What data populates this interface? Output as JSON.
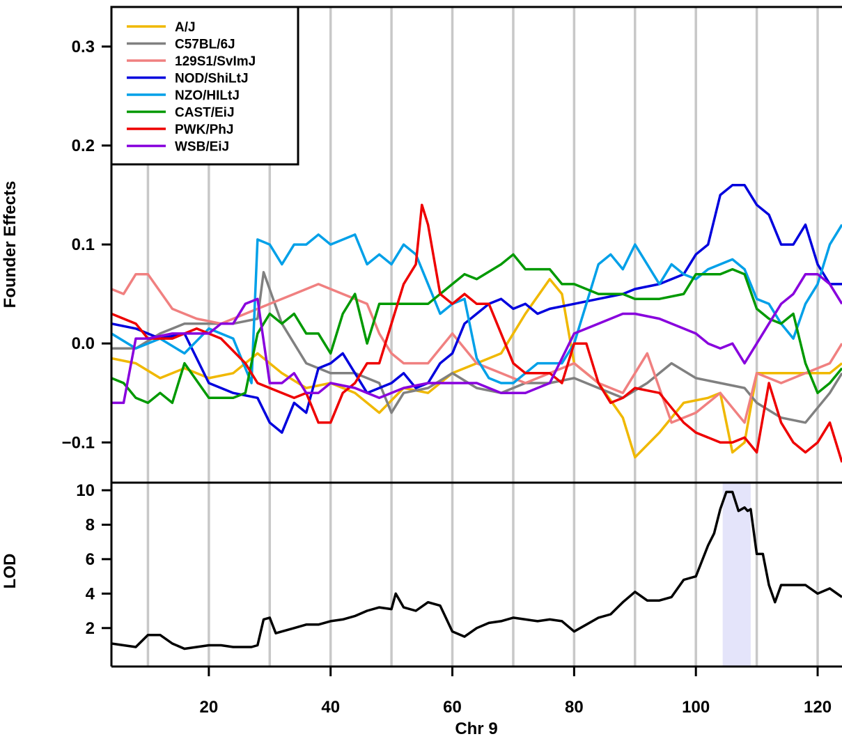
{
  "chart_data": [
    {
      "type": "line",
      "panel": "founder-effects",
      "ylabel": "Founder Effects",
      "ylim": [
        -0.135,
        0.34
      ],
      "xlim": [
        4,
        124
      ],
      "yticks": [
        -0.1,
        0.0,
        0.1,
        0.2,
        0.3
      ],
      "ytick_labels": [
        "−0.1",
        "0.0",
        "0.1",
        "0.2",
        "0.3"
      ],
      "grid": "vertical grey lines every 10 Mb",
      "legend": "top-left",
      "series": [
        {
          "name": "A/J",
          "color": "#F0B800",
          "x": [
            4,
            8,
            12,
            16,
            20,
            24,
            28,
            32,
            36,
            40,
            44,
            48,
            52,
            56,
            60,
            64,
            68,
            72,
            76,
            78,
            80,
            84,
            88,
            90,
            94,
            98,
            102,
            104,
            106,
            108,
            110,
            114,
            118,
            122,
            124
          ],
          "values": [
            -0.015,
            -0.02,
            -0.035,
            -0.025,
            -0.035,
            -0.03,
            -0.01,
            -0.03,
            -0.045,
            -0.04,
            -0.05,
            -0.07,
            -0.045,
            -0.05,
            -0.03,
            -0.02,
            -0.01,
            0.03,
            0.065,
            0.05,
            -0.02,
            -0.04,
            -0.075,
            -0.115,
            -0.09,
            -0.06,
            -0.055,
            -0.05,
            -0.11,
            -0.1,
            -0.03,
            -0.03,
            -0.03,
            -0.03,
            -0.02
          ]
        },
        {
          "name": "C57BL/6J",
          "color": "#808080",
          "x": [
            4,
            8,
            12,
            16,
            20,
            24,
            28,
            29,
            32,
            36,
            40,
            44,
            48,
            50,
            52,
            56,
            60,
            64,
            68,
            72,
            76,
            80,
            84,
            88,
            92,
            96,
            100,
            104,
            108,
            110,
            114,
            118,
            122,
            124
          ],
          "values": [
            -0.005,
            -0.005,
            0.01,
            0.02,
            0.02,
            0.02,
            0.025,
            0.072,
            0.02,
            -0.02,
            -0.03,
            -0.03,
            -0.04,
            -0.07,
            -0.05,
            -0.045,
            -0.03,
            -0.045,
            -0.05,
            -0.04,
            -0.04,
            -0.035,
            -0.045,
            -0.055,
            -0.04,
            -0.02,
            -0.035,
            -0.04,
            -0.045,
            -0.06,
            -0.075,
            -0.08,
            -0.05,
            -0.03
          ]
        },
        {
          "name": "129S1/SvImJ",
          "color": "#F08080",
          "x": [
            4,
            6,
            8,
            10,
            14,
            18,
            22,
            26,
            30,
            34,
            38,
            42,
            46,
            48,
            50,
            52,
            56,
            60,
            64,
            68,
            72,
            76,
            80,
            84,
            88,
            92,
            96,
            100,
            104,
            108,
            110,
            114,
            118,
            122,
            124
          ],
          "values": [
            0.055,
            0.05,
            0.07,
            0.07,
            0.035,
            0.025,
            0.02,
            0.03,
            0.04,
            0.05,
            0.06,
            0.05,
            0.04,
            0.01,
            -0.01,
            -0.02,
            -0.02,
            0.01,
            -0.02,
            -0.03,
            -0.04,
            -0.03,
            -0.02,
            -0.04,
            -0.05,
            -0.01,
            -0.08,
            -0.07,
            -0.05,
            -0.08,
            -0.03,
            -0.04,
            -0.03,
            -0.02,
            0.0
          ]
        },
        {
          "name": "NOD/ShiLtJ",
          "color": "#0000DD",
          "x": [
            4,
            8,
            12,
            16,
            20,
            24,
            28,
            30,
            32,
            34,
            36,
            38,
            40,
            42,
            44,
            46,
            48,
            50,
            52,
            54,
            56,
            58,
            60,
            62,
            64,
            66,
            68,
            70,
            72,
            74,
            76,
            80,
            84,
            88,
            90,
            94,
            98,
            100,
            102,
            104,
            106,
            108,
            110,
            112,
            114,
            116,
            118,
            120,
            122,
            124
          ],
          "values": [
            0.02,
            0.015,
            0.005,
            0.01,
            -0.04,
            -0.05,
            -0.055,
            -0.08,
            -0.09,
            -0.06,
            -0.07,
            -0.025,
            -0.02,
            -0.01,
            -0.03,
            -0.05,
            -0.045,
            -0.04,
            -0.03,
            -0.045,
            -0.04,
            -0.02,
            -0.01,
            0.02,
            0.03,
            0.04,
            0.045,
            0.035,
            0.04,
            0.03,
            0.035,
            0.04,
            0.045,
            0.05,
            0.055,
            0.06,
            0.07,
            0.09,
            0.1,
            0.15,
            0.16,
            0.16,
            0.14,
            0.13,
            0.1,
            0.1,
            0.12,
            0.08,
            0.06,
            0.06
          ]
        },
        {
          "name": "NZO/HILtJ",
          "color": "#00A0E8",
          "x": [
            4,
            8,
            12,
            16,
            20,
            24,
            27,
            28,
            30,
            32,
            34,
            36,
            38,
            40,
            44,
            46,
            48,
            50,
            52,
            54,
            56,
            58,
            60,
            62,
            64,
            66,
            68,
            70,
            72,
            74,
            76,
            78,
            80,
            82,
            84,
            86,
            88,
            90,
            94,
            96,
            98,
            100,
            102,
            104,
            106,
            108,
            110,
            112,
            114,
            116,
            118,
            120,
            122,
            124
          ],
          "values": [
            0.01,
            -0.005,
            0.005,
            -0.01,
            0.015,
            0.005,
            -0.04,
            0.105,
            0.1,
            0.08,
            0.1,
            0.1,
            0.11,
            0.1,
            0.11,
            0.08,
            0.09,
            0.08,
            0.1,
            0.09,
            0.06,
            0.03,
            0.04,
            0.045,
            -0.015,
            -0.035,
            -0.04,
            -0.04,
            -0.03,
            -0.02,
            -0.02,
            -0.02,
            0.0,
            0.04,
            0.08,
            0.09,
            0.075,
            0.1,
            0.06,
            0.08,
            0.07,
            0.065,
            0.075,
            0.08,
            0.085,
            0.075,
            0.045,
            0.04,
            0.02,
            0.005,
            0.04,
            0.06,
            0.1,
            0.12
          ]
        },
        {
          "name": "CAST/EiJ",
          "color": "#009900",
          "x": [
            4,
            6,
            8,
            10,
            12,
            14,
            16,
            20,
            24,
            26,
            28,
            30,
            32,
            34,
            36,
            38,
            40,
            42,
            44,
            46,
            48,
            52,
            56,
            60,
            62,
            64,
            68,
            70,
            72,
            76,
            78,
            80,
            84,
            88,
            90,
            94,
            98,
            100,
            104,
            106,
            108,
            110,
            112,
            114,
            116,
            118,
            120,
            122,
            124
          ],
          "values": [
            -0.035,
            -0.04,
            -0.055,
            -0.06,
            -0.05,
            -0.06,
            -0.02,
            -0.055,
            -0.055,
            -0.05,
            0.01,
            0.03,
            0.02,
            0.03,
            0.01,
            0.01,
            -0.01,
            0.03,
            0.05,
            0.0,
            0.04,
            0.04,
            0.04,
            0.06,
            0.07,
            0.065,
            0.08,
            0.09,
            0.075,
            0.075,
            0.06,
            0.06,
            0.05,
            0.05,
            0.045,
            0.045,
            0.05,
            0.07,
            0.07,
            0.075,
            0.07,
            0.035,
            0.025,
            0.02,
            0.03,
            -0.02,
            -0.05,
            -0.04,
            -0.025
          ]
        },
        {
          "name": "PWK/PhJ",
          "color": "#EE0000",
          "x": [
            4,
            8,
            10,
            14,
            18,
            22,
            26,
            28,
            30,
            34,
            36,
            38,
            40,
            42,
            44,
            46,
            48,
            50,
            52,
            54,
            55,
            56,
            58,
            60,
            62,
            64,
            66,
            68,
            70,
            72,
            74,
            76,
            78,
            80,
            82,
            84,
            86,
            88,
            90,
            94,
            98,
            100,
            104,
            106,
            108,
            110,
            112,
            114,
            116,
            118,
            120,
            122,
            124
          ],
          "values": [
            0.03,
            0.02,
            0.005,
            0.005,
            0.015,
            0.005,
            -0.02,
            -0.04,
            -0.045,
            -0.055,
            -0.05,
            -0.08,
            -0.08,
            -0.05,
            -0.04,
            -0.02,
            -0.02,
            0.02,
            0.06,
            0.08,
            0.14,
            0.12,
            0.05,
            0.04,
            0.05,
            0.04,
            0.04,
            0.01,
            -0.02,
            -0.03,
            -0.03,
            -0.03,
            -0.04,
            0.0,
            0.0,
            -0.04,
            -0.06,
            -0.055,
            -0.045,
            -0.05,
            -0.08,
            -0.09,
            -0.1,
            -0.1,
            -0.095,
            -0.11,
            -0.04,
            -0.08,
            -0.1,
            -0.11,
            -0.1,
            -0.08,
            -0.12
          ]
        },
        {
          "name": "WSB/EiJ",
          "color": "#8800DD",
          "x": [
            4,
            6,
            8,
            10,
            14,
            18,
            20,
            22,
            24,
            26,
            28,
            30,
            32,
            34,
            36,
            38,
            40,
            44,
            48,
            52,
            56,
            60,
            64,
            68,
            72,
            76,
            80,
            84,
            88,
            90,
            94,
            98,
            100,
            102,
            104,
            106,
            108,
            110,
            112,
            114,
            116,
            118,
            120,
            122,
            124
          ],
          "values": [
            -0.06,
            -0.06,
            0.005,
            0.005,
            0.01,
            0.01,
            0.01,
            0.02,
            0.02,
            0.04,
            0.045,
            -0.04,
            -0.04,
            -0.03,
            -0.05,
            -0.05,
            -0.04,
            -0.045,
            -0.055,
            -0.045,
            -0.04,
            -0.04,
            -0.04,
            -0.05,
            -0.05,
            -0.04,
            0.01,
            0.02,
            0.03,
            0.03,
            0.025,
            0.015,
            0.01,
            0.0,
            -0.005,
            0.0,
            -0.02,
            0.0,
            0.02,
            0.04,
            0.05,
            0.07,
            0.07,
            0.06,
            0.04
          ]
        }
      ]
    },
    {
      "type": "line",
      "panel": "lod",
      "ylabel": "LOD",
      "xlabel": "Chr 9",
      "xlim": [
        4,
        124
      ],
      "ylim": [
        0.05,
        10.2
      ],
      "yticks": [
        2,
        4,
        6,
        8,
        10
      ],
      "ytick_labels": [
        "2",
        "4",
        "6",
        "8",
        "10"
      ],
      "xticks": [
        20,
        40,
        60,
        80,
        100,
        120
      ],
      "xtick_labels": [
        "20",
        "40",
        "60",
        "80",
        "100",
        "120"
      ],
      "highlight_interval": [
        104.4,
        109
      ],
      "highlight_color": "#E4E4FA",
      "series": [
        {
          "name": "",
          "color": "#000000",
          "x": [
            4,
            6,
            8,
            10,
            12,
            14,
            16,
            18,
            20,
            22,
            24,
            26,
            27,
            28,
            29,
            30,
            31,
            32,
            34,
            36,
            38,
            40,
            42,
            44,
            46,
            48,
            50,
            50.7,
            52,
            54,
            56,
            58,
            60,
            62,
            64,
            66,
            68,
            70,
            72,
            74,
            76,
            78,
            80,
            82,
            84,
            86,
            88,
            90,
            92,
            94,
            96,
            98,
            100,
            102,
            103,
            104,
            105,
            106,
            107,
            108,
            108.5,
            109,
            110,
            111,
            112,
            113,
            114,
            116,
            118,
            120,
            122,
            124
          ],
          "values": [
            1.1,
            1.0,
            0.9,
            1.6,
            1.6,
            1.1,
            0.8,
            0.9,
            1.0,
            1.0,
            0.9,
            0.9,
            0.9,
            1.0,
            2.5,
            2.6,
            1.7,
            1.8,
            2.0,
            2.2,
            2.2,
            2.4,
            2.5,
            2.7,
            3.0,
            3.2,
            3.1,
            4.0,
            3.2,
            3.0,
            3.5,
            3.3,
            1.8,
            1.5,
            2.0,
            2.3,
            2.4,
            2.6,
            2.5,
            2.4,
            2.5,
            2.4,
            1.8,
            2.2,
            2.6,
            2.8,
            3.5,
            4.1,
            3.6,
            3.6,
            3.8,
            4.8,
            5.0,
            6.8,
            7.5,
            8.9,
            9.9,
            9.9,
            8.8,
            9.0,
            8.8,
            8.9,
            6.3,
            6.3,
            4.5,
            3.5,
            4.5,
            4.5,
            4.5,
            4.0,
            4.3,
            3.8
          ]
        }
      ]
    }
  ]
}
